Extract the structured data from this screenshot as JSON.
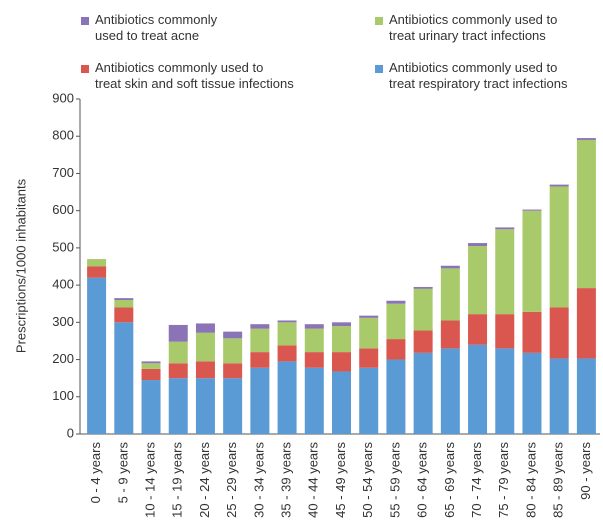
{
  "chart_data": {
    "type": "stacked_bar",
    "y_label": "Prescriptions/1000 inhabitants",
    "categories": [
      "0 - 4 years",
      "5 - 9 years",
      "10 - 14 years",
      "15 - 19 years",
      "20 - 24 years",
      "25 - 29 years",
      "30 - 34 years",
      "35 - 39 years",
      "40 - 44 years",
      "45 - 49 years",
      "50 - 54 years",
      "55 - 59 years",
      "60 - 64 years",
      "65 - 69 years",
      "70 - 74 years",
      "75 - 79 years",
      "80 - 84 years",
      "85 - 89 years",
      "90 - years"
    ],
    "series": [
      {
        "name": "Antibiotics commonly used to\ntreat respiratory tract infections",
        "color": "#5b9bd5",
        "values": [
          420,
          300,
          145,
          150,
          150,
          150,
          178,
          195,
          178,
          168,
          178,
          200,
          218,
          230,
          240,
          230,
          218,
          203,
          203
        ]
      },
      {
        "name": "Antibiotics commonly used to\ntreat skin and soft tissue infections",
        "color": "#d9574f",
        "values": [
          30,
          40,
          30,
          40,
          45,
          40,
          42,
          43,
          42,
          52,
          52,
          55,
          60,
          75,
          82,
          92,
          110,
          137,
          189
        ]
      },
      {
        "name": "Antibiotics commonly used to\ntreat urinary tract infections",
        "color": "#a9ca6a",
        "values": [
          20,
          20,
          15,
          58,
          77,
          67,
          63,
          62,
          63,
          70,
          82,
          95,
          112,
          140,
          183,
          228,
          272,
          325,
          398
        ]
      },
      {
        "name": "Antibiotics commonly\nused to treat acne",
        "color": "#8a74b5",
        "values": [
          0,
          5,
          5,
          45,
          25,
          18,
          12,
          5,
          12,
          10,
          6,
          8,
          5,
          7,
          8,
          5,
          3,
          5,
          5
        ]
      }
    ],
    "ylim": [
      0,
      900
    ],
    "yticks": [
      0,
      100,
      200,
      300,
      400,
      500,
      600,
      700,
      800,
      900
    ]
  }
}
